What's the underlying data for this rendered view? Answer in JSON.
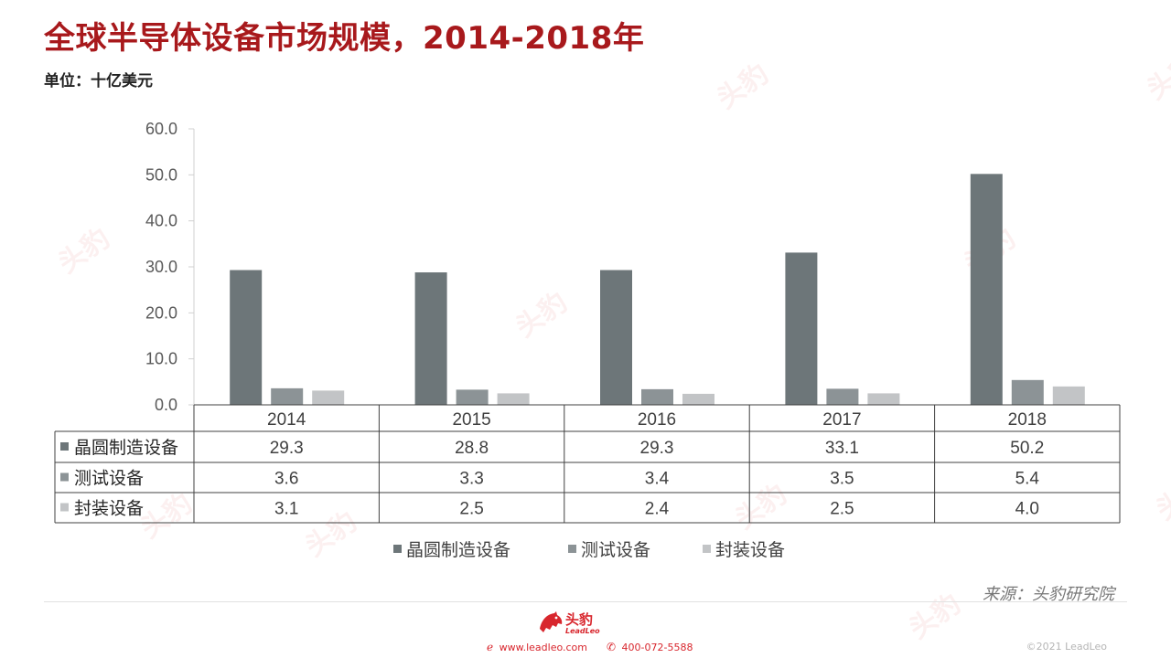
{
  "page": {
    "title": "全球半导体设备市场规模，2014-2018年",
    "unit": "单位：十亿美元",
    "source": "来源：头豹研究院",
    "logo_cn": "头豹",
    "logo_en": "LeadLeo",
    "website": "www.leadleo.com",
    "phone": "400-072-5588",
    "copyright": "©2021 LeadLeo",
    "watermark": "头豹",
    "watermark_sub": "LeadLeo"
  },
  "colors": {
    "title": "#a8191c",
    "brand": "#d8262d",
    "series": [
      "#6d7679",
      "#8c9396",
      "#c2c4c6"
    ]
  },
  "chart_data": {
    "type": "bar",
    "categories": [
      "2014",
      "2015",
      "2016",
      "2017",
      "2018"
    ],
    "series": [
      {
        "name": "晶圆制造设备",
        "values": [
          29.3,
          28.8,
          29.3,
          33.1,
          50.2
        ]
      },
      {
        "name": "测试设备",
        "values": [
          3.6,
          3.3,
          3.4,
          3.5,
          5.4
        ]
      },
      {
        "name": "封装设备",
        "values": [
          3.1,
          2.5,
          2.4,
          2.5,
          4.0
        ]
      }
    ],
    "ylim": [
      0,
      60
    ],
    "yticks": [
      "60.0",
      "50.0",
      "40.0",
      "30.0",
      "20.0",
      "10.0",
      "0.0"
    ],
    "table_values": [
      [
        "29.3",
        "28.8",
        "29.3",
        "33.1",
        "50.2"
      ],
      [
        "3.6",
        "3.3",
        "3.4",
        "3.5",
        "5.4"
      ],
      [
        "3.1",
        "2.5",
        "2.4",
        "2.5",
        "4.0"
      ]
    ],
    "legend_position": "bottom",
    "grid": false,
    "data_table": true
  }
}
